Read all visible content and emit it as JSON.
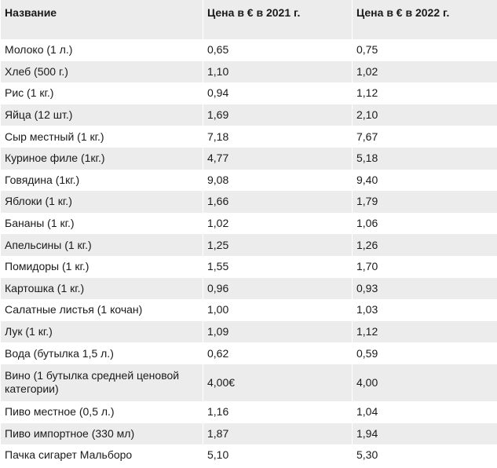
{
  "table": {
    "headers": [
      "Название",
      "Цена в € в 2021 г.",
      "Цена в € в 2022 г."
    ],
    "rows": [
      {
        "name": "Молоко (1 л.)",
        "p2021": "0,65",
        "p2022": "0,75"
      },
      {
        "name": "Хлеб (500 г.)",
        "p2021": "1,10",
        "p2022": "1,02"
      },
      {
        "name": "Рис (1 кг.)",
        "p2021": "0,94",
        "p2022": "1,12"
      },
      {
        "name": "Яйца (12 шт.)",
        "p2021": "1,69",
        "p2022": "2,10"
      },
      {
        "name": "Сыр местный (1 кг.)",
        "p2021": "7,18",
        "p2022": "7,67"
      },
      {
        "name": "Куриное филе (1кг.)",
        "p2021": "4,77",
        "p2022": "5,18"
      },
      {
        "name": "Говядина (1кг.)",
        "p2021": "9,08",
        "p2022": "9,40"
      },
      {
        "name": "Яблоки (1 кг.)",
        "p2021": "1,66",
        "p2022": "1,79"
      },
      {
        "name": "Бананы (1 кг.)",
        "p2021": "1,02",
        "p2022": "1,06"
      },
      {
        "name": "Апельсины (1 кг.)",
        "p2021": "1,25",
        "p2022": "1,26"
      },
      {
        "name": "Помидоры (1 кг.)",
        "p2021": "1,55",
        "p2022": "1,70"
      },
      {
        "name": "Картошка (1 кг.)",
        "p2021": "0,96",
        "p2022": "0,93"
      },
      {
        "name": "Салатные листья (1 кочан)",
        "p2021": "1,00",
        "p2022": "1,03"
      },
      {
        "name": "Лук (1 кг.)",
        "p2021": "1,09",
        "p2022": "1,12"
      },
      {
        "name": "Вода (бутылка 1,5 л.)",
        "p2021": "0,62",
        "p2022": "0,59"
      },
      {
        "name": "Вино (1 бутылка средней ценовой категории)",
        "p2021": "4,00€",
        "p2022": "4,00"
      },
      {
        "name": "Пиво местное (0,5 л.)",
        "p2021": "1,16",
        "p2022": "1,04"
      },
      {
        "name": "Пиво импортное (330 мл)",
        "p2021": "1,87",
        "p2022": "1,94"
      },
      {
        "name": "Пачка сигарет Мальборо",
        "p2021": "5,10",
        "p2022": "5,30"
      }
    ]
  },
  "colors": {
    "stripe": "#ececec",
    "background": "#ffffff",
    "text": "#1a1a1a"
  }
}
